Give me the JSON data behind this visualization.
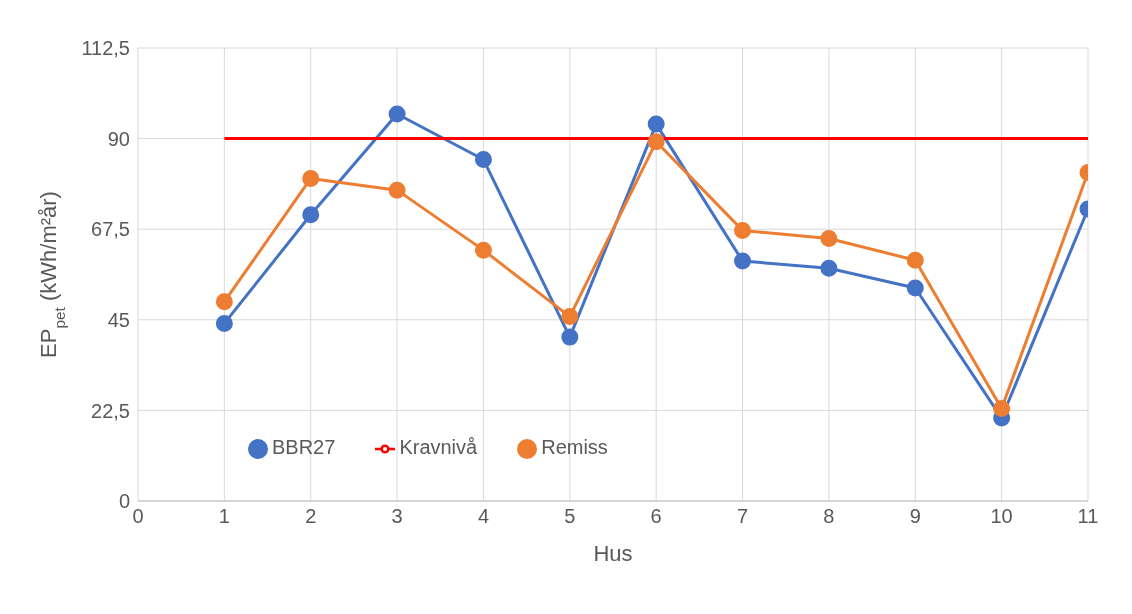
{
  "chart_data": {
    "type": "line",
    "xlabel": "Hus",
    "ylabel": "EP$_{pet}$ (kWh/m²år)",
    "x": [
      1,
      2,
      3,
      4,
      5,
      6,
      7,
      8,
      9,
      10,
      11
    ],
    "xlim": [
      0,
      11
    ],
    "xticks": [
      0,
      1,
      2,
      3,
      4,
      5,
      6,
      7,
      8,
      9,
      10,
      11
    ],
    "ylim": [
      0,
      112.5
    ],
    "yticks": [
      0,
      {
        "value": 22.5,
        "label": "22,5"
      },
      45,
      {
        "value": 67.5,
        "label": "67,5"
      },
      90,
      {
        "value": 112.5,
        "label": "112,5"
      }
    ],
    "grid": true,
    "legend": "bottom left",
    "marker": "circle",
    "line_style": "solid",
    "series": [
      {
        "name": "BBR27",
        "color": "#4472c4",
        "values": [
          44.1,
          71.1,
          96.1,
          84.8,
          40.7,
          93.6,
          59.6,
          57.8,
          52.9,
          20.6,
          72.5
        ]
      },
      {
        "name": "Remiss",
        "color": "#ed7d31",
        "values": [
          49.5,
          80.1,
          77.2,
          62.3,
          45.8,
          89.2,
          67.2,
          65.2,
          59.8,
          23.0,
          81.6
        ]
      },
      {
        "name": "Kravnivå",
        "color": "#ff0000",
        "marker": "none",
        "values": [
          90,
          90,
          90,
          90,
          90,
          90,
          90,
          90,
          90,
          90,
          90
        ]
      }
    ]
  }
}
